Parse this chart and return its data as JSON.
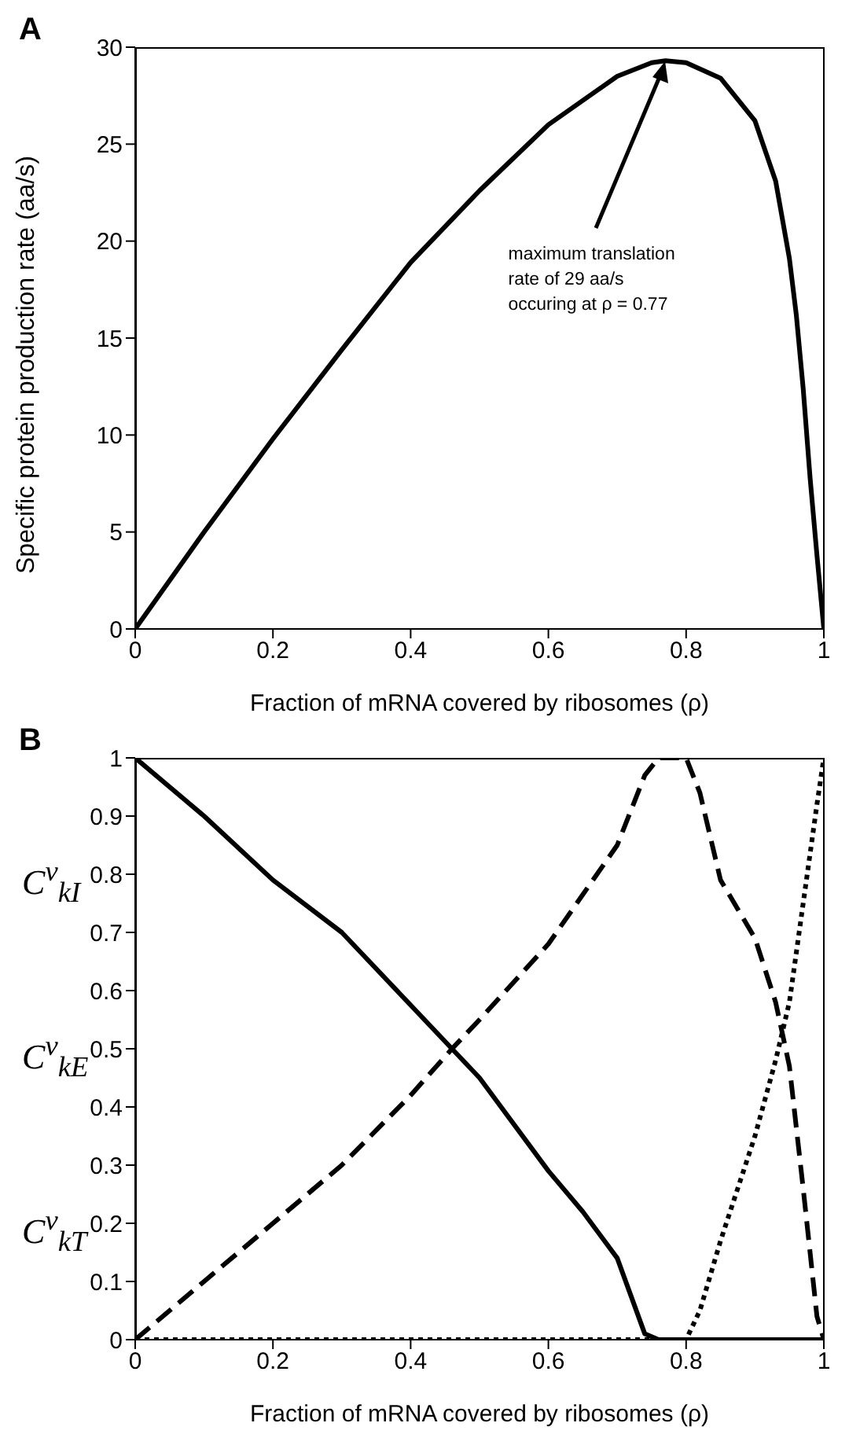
{
  "chart_data": [
    {
      "type": "line",
      "title": "A",
      "xlabel": "Fraction of mRNA covered by ribosomes (ρ)",
      "ylabel": "Specific protein production rate (aa/s)",
      "x": [
        0,
        0.1,
        0.2,
        0.3,
        0.4,
        0.5,
        0.6,
        0.7,
        0.75,
        0.77,
        0.8,
        0.85,
        0.9,
        0.93,
        0.95,
        0.96,
        0.97,
        0.98,
        0.99,
        1.0
      ],
      "series": [
        {
          "color": "#000000",
          "values": [
            0,
            5.0,
            9.8,
            14.4,
            18.9,
            22.6,
            26.0,
            28.5,
            29.2,
            29.3,
            29.2,
            28.4,
            26.2,
            23.1,
            19.1,
            16.2,
            12.4,
            7.8,
            3.8,
            0
          ]
        }
      ],
      "xlim": [
        0,
        1
      ],
      "xticks": [
        0,
        0.2,
        0.4,
        0.6,
        0.8,
        1
      ],
      "ylim": [
        0,
        30
      ],
      "yticks": [
        0,
        5,
        10,
        15,
        20,
        25,
        30
      ],
      "annotations": [
        {
          "text": "maximum translation rate of 29 aa/s occuring at ρ = 0.77",
          "x": 0.77,
          "y": 29.3
        }
      ],
      "grid": false,
      "marker": "none",
      "line_style": "solid"
    },
    {
      "type": "line",
      "title": "B",
      "xlabel": "Fraction of mRNA covered by ribosomes (ρ)",
      "series": [
        {
          "color": "#000000",
          "line_style": "solid",
          "x": [
            0,
            0.1,
            0.2,
            0.3,
            0.4,
            0.46,
            0.5,
            0.6,
            0.65,
            0.7,
            0.74,
            0.76,
            0.8,
            0.9,
            1.0
          ],
          "values": [
            1,
            0.9,
            0.79,
            0.7,
            0.575,
            0.5,
            0.45,
            0.29,
            0.22,
            0.14,
            0.01,
            0,
            0,
            0,
            0
          ]
        },
        {
          "color": "#000000",
          "line_style": "dashed",
          "x": [
            0,
            0.1,
            0.2,
            0.3,
            0.4,
            0.46,
            0.5,
            0.6,
            0.7,
            0.74,
            0.76,
            0.8,
            0.82,
            0.85,
            0.9,
            0.93,
            0.95,
            0.97,
            0.98,
            0.99,
            1.0
          ],
          "values": [
            0,
            0.1,
            0.2,
            0.3,
            0.42,
            0.5,
            0.55,
            0.68,
            0.85,
            0.97,
            1.0,
            1.0,
            0.94,
            0.79,
            0.69,
            0.58,
            0.47,
            0.26,
            0.15,
            0.04,
            0
          ]
        },
        {
          "color": "#000000",
          "line_style": "dotted",
          "x": [
            0,
            0.2,
            0.4,
            0.6,
            0.8,
            0.82,
            0.85,
            0.9,
            0.93,
            0.95,
            0.97,
            0.99,
            1.0
          ],
          "values": [
            0,
            0,
            0,
            0,
            0,
            0.05,
            0.17,
            0.35,
            0.48,
            0.58,
            0.75,
            0.92,
            1.0
          ]
        }
      ],
      "xlim": [
        0,
        1
      ],
      "xticks": [
        0,
        0.2,
        0.4,
        0.6,
        0.8,
        1
      ],
      "ylim": [
        0,
        1
      ],
      "yticks": [
        0,
        0.1,
        0.2,
        0.3,
        0.4,
        0.5,
        0.6,
        0.7,
        0.8,
        0.9,
        1
      ],
      "annotations": [
        "C$^{ν}$$_{kI}$",
        "C$^{ν}$$_{kE}$",
        "C$^{ν}$$_{kT}$"
      ],
      "grid": false,
      "marker": "none"
    }
  ]
}
